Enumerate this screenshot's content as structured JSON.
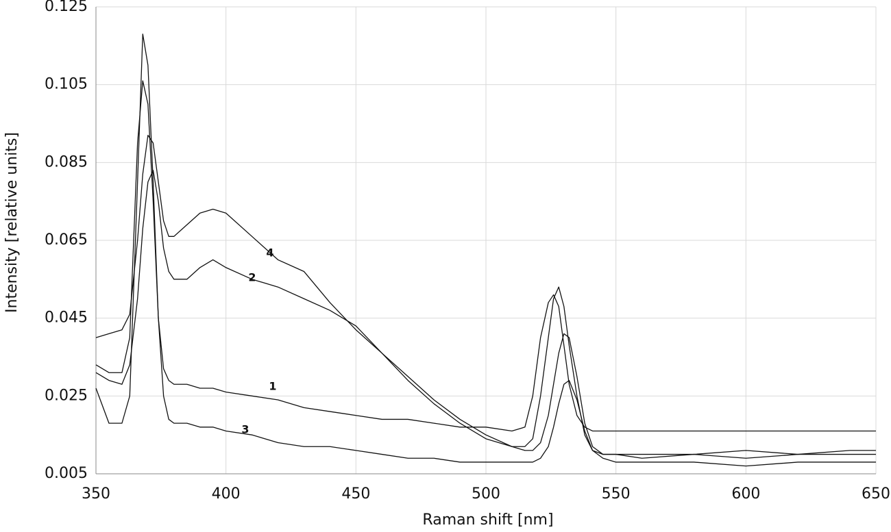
{
  "chart_data": {
    "type": "line",
    "xlabel": "Raman shift [nm]",
    "ylabel": "Intensity [relative units]",
    "x": [
      350,
      355,
      360,
      363,
      366,
      368,
      370,
      372,
      374,
      376,
      378,
      380,
      385,
      390,
      395,
      400,
      410,
      420,
      430,
      440,
      450,
      460,
      470,
      480,
      490,
      500,
      510,
      515,
      518,
      521,
      524,
      526,
      528,
      530,
      532,
      535,
      538,
      541,
      545,
      550,
      560,
      580,
      600,
      620,
      640,
      650
    ],
    "series": [
      {
        "name": "1",
        "color": "#111111",
        "values": [
          0.033,
          0.031,
          0.031,
          0.04,
          0.09,
          0.106,
          0.1,
          0.075,
          0.045,
          0.032,
          0.029,
          0.028,
          0.028,
          0.027,
          0.027,
          0.026,
          0.025,
          0.024,
          0.022,
          0.021,
          0.02,
          0.019,
          0.019,
          0.018,
          0.017,
          0.017,
          0.016,
          0.017,
          0.025,
          0.04,
          0.049,
          0.051,
          0.048,
          0.038,
          0.028,
          0.02,
          0.017,
          0.016,
          0.016,
          0.016,
          0.016,
          0.016,
          0.016,
          0.016,
          0.016,
          0.016
        ]
      },
      {
        "name": "2",
        "color": "#111111",
        "values": [
          0.031,
          0.029,
          0.028,
          0.033,
          0.05,
          0.068,
          0.08,
          0.083,
          0.075,
          0.063,
          0.057,
          0.055,
          0.055,
          0.058,
          0.06,
          0.058,
          0.055,
          0.053,
          0.05,
          0.047,
          0.043,
          0.036,
          0.029,
          0.023,
          0.018,
          0.014,
          0.012,
          0.011,
          0.011,
          0.013,
          0.02,
          0.028,
          0.036,
          0.041,
          0.04,
          0.03,
          0.018,
          0.012,
          0.01,
          0.01,
          0.009,
          0.01,
          0.009,
          0.01,
          0.01,
          0.01
        ]
      },
      {
        "name": "3",
        "color": "#111111",
        "values": [
          0.027,
          0.018,
          0.018,
          0.025,
          0.08,
          0.118,
          0.11,
          0.08,
          0.045,
          0.025,
          0.019,
          0.018,
          0.018,
          0.017,
          0.017,
          0.016,
          0.015,
          0.013,
          0.012,
          0.012,
          0.011,
          0.01,
          0.009,
          0.009,
          0.008,
          0.008,
          0.008,
          0.008,
          0.008,
          0.009,
          0.012,
          0.017,
          0.023,
          0.028,
          0.029,
          0.024,
          0.016,
          0.011,
          0.009,
          0.008,
          0.008,
          0.008,
          0.007,
          0.008,
          0.008,
          0.008
        ]
      },
      {
        "name": "4",
        "color": "#111111",
        "values": [
          0.04,
          0.041,
          0.042,
          0.046,
          0.065,
          0.082,
          0.092,
          0.09,
          0.08,
          0.07,
          0.066,
          0.066,
          0.069,
          0.072,
          0.073,
          0.072,
          0.066,
          0.06,
          0.057,
          0.049,
          0.042,
          0.036,
          0.03,
          0.024,
          0.019,
          0.015,
          0.012,
          0.012,
          0.014,
          0.025,
          0.04,
          0.05,
          0.053,
          0.048,
          0.038,
          0.025,
          0.015,
          0.011,
          0.01,
          0.01,
          0.01,
          0.01,
          0.011,
          0.01,
          0.011,
          0.011
        ]
      }
    ],
    "xlim": [
      350,
      650
    ],
    "xticks": [
      350,
      400,
      450,
      500,
      550,
      600,
      650
    ],
    "ylim": [
      0.005,
      0.125
    ],
    "yticks": [
      0.005,
      0.025,
      0.045,
      0.065,
      0.085,
      0.105,
      0.125
    ],
    "grid": true
  }
}
